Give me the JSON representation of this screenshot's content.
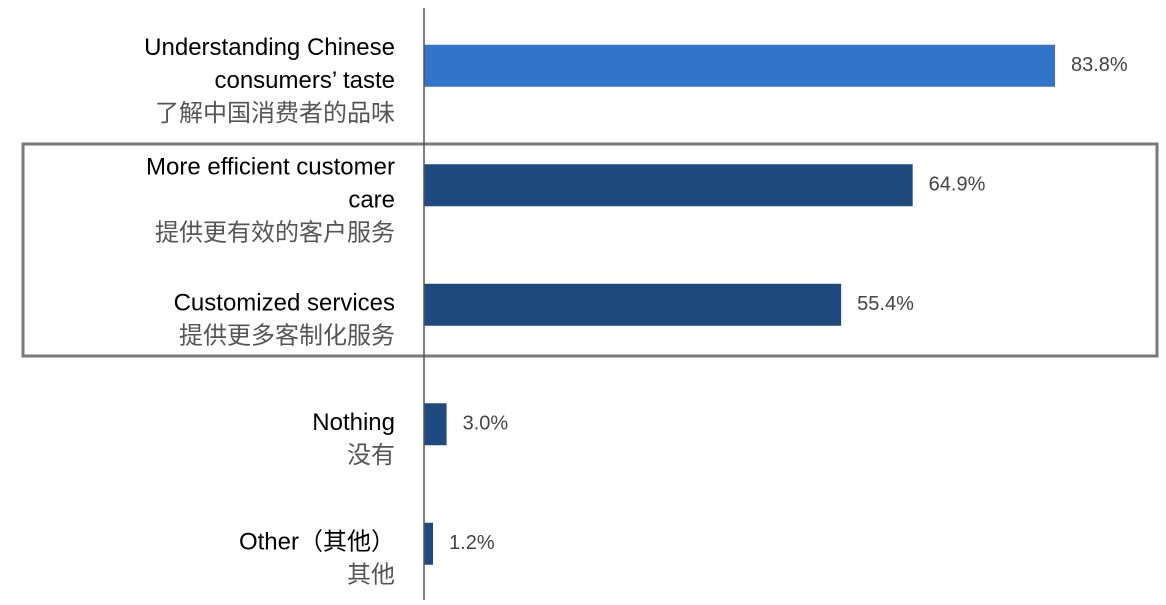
{
  "chart_data": {
    "type": "hbar",
    "categories": [
      [
        "Understanding Chinese",
        "consumers’ taste",
        "了解中国消费者的品味"
      ],
      [
        "More efficient customer",
        "care",
        "提供更有效的客户服务"
      ],
      [
        "Customized services",
        "提供更多客制化服务"
      ],
      [
        "Nothing",
        "没有"
      ],
      [
        "Other（其他）",
        "其他"
      ]
    ],
    "values": [
      83.8,
      64.9,
      55.4,
      3.0,
      1.2
    ],
    "value_labels": [
      "83.8%",
      "64.9%",
      "55.4%",
      "3.0%",
      "1.2%"
    ],
    "colors": [
      "#3174c9",
      "#1f4a7f",
      "#1f4a7f",
      "#1f4a7f",
      "#1f4a7f"
    ]
  }
}
